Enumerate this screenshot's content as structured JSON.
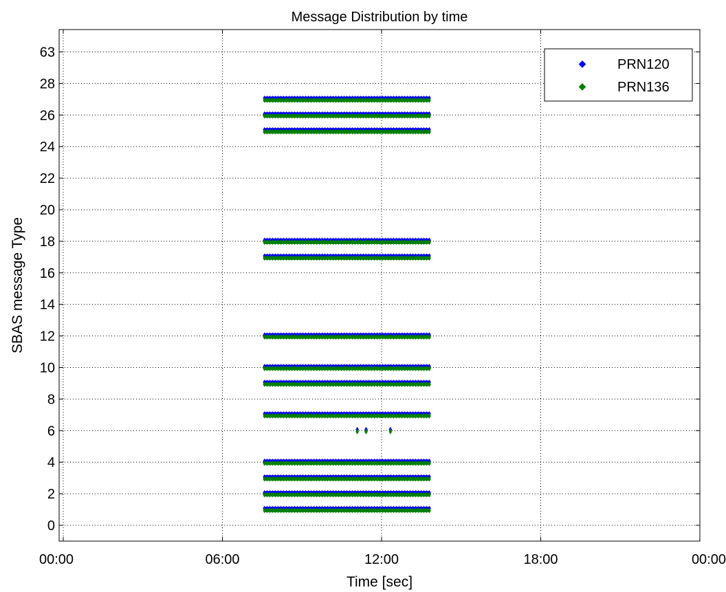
{
  "chart_data": {
    "type": "scatter",
    "title": "Message Distribution by time",
    "xlabel": "Time [sec]",
    "ylabel": "SBAS message Type",
    "x_ticks": [
      "00:00",
      "06:00",
      "12:00",
      "18:00",
      "00:00"
    ],
    "x_tick_hours": [
      0,
      6,
      12,
      18,
      24
    ],
    "xlim_hours": [
      0,
      24
    ],
    "y_ticks": [
      "0",
      "2",
      "4",
      "6",
      "8",
      "10",
      "12",
      "14",
      "16",
      "18",
      "20",
      "22",
      "24",
      "26",
      "28",
      "63"
    ],
    "grid": true,
    "legend_position": "top-right",
    "series": [
      {
        "name": "PRN120",
        "color": "#0000ff",
        "strips": [
          {
            "message_type": 1,
            "start_time": "07:35",
            "end_time": "13:50"
          },
          {
            "message_type": 2,
            "start_time": "07:35",
            "end_time": "13:50"
          },
          {
            "message_type": 3,
            "start_time": "07:35",
            "end_time": "13:50"
          },
          {
            "message_type": 4,
            "start_time": "07:35",
            "end_time": "13:50"
          },
          {
            "message_type": 7,
            "start_time": "07:35",
            "end_time": "13:50"
          },
          {
            "message_type": 9,
            "start_time": "07:35",
            "end_time": "13:50"
          },
          {
            "message_type": 10,
            "start_time": "07:35",
            "end_time": "13:50"
          },
          {
            "message_type": 12,
            "start_time": "07:35",
            "end_time": "13:50"
          },
          {
            "message_type": 17,
            "start_time": "07:35",
            "end_time": "13:50"
          },
          {
            "message_type": 18,
            "start_time": "07:35",
            "end_time": "13:50"
          },
          {
            "message_type": 25,
            "start_time": "07:35",
            "end_time": "13:50"
          },
          {
            "message_type": 26,
            "start_time": "07:35",
            "end_time": "13:50"
          },
          {
            "message_type": 27,
            "start_time": "07:35",
            "end_time": "13:50"
          }
        ],
        "points": [
          {
            "message_type": 6,
            "time": "11:05"
          },
          {
            "message_type": 6,
            "time": "11:25"
          },
          {
            "message_type": 6,
            "time": "12:20"
          }
        ]
      },
      {
        "name": "PRN136",
        "color": "#008000",
        "strips": [
          {
            "message_type": 1,
            "start_time": "07:35",
            "end_time": "13:50"
          },
          {
            "message_type": 2,
            "start_time": "07:35",
            "end_time": "13:50"
          },
          {
            "message_type": 3,
            "start_time": "07:35",
            "end_time": "13:50"
          },
          {
            "message_type": 4,
            "start_time": "07:35",
            "end_time": "13:50"
          },
          {
            "message_type": 7,
            "start_time": "07:35",
            "end_time": "13:50"
          },
          {
            "message_type": 9,
            "start_time": "07:35",
            "end_time": "13:50"
          },
          {
            "message_type": 10,
            "start_time": "07:35",
            "end_time": "13:50"
          },
          {
            "message_type": 12,
            "start_time": "07:35",
            "end_time": "13:50"
          },
          {
            "message_type": 17,
            "start_time": "07:35",
            "end_time": "13:50"
          },
          {
            "message_type": 18,
            "start_time": "07:35",
            "end_time": "13:50"
          },
          {
            "message_type": 25,
            "start_time": "07:35",
            "end_time": "13:50"
          },
          {
            "message_type": 26,
            "start_time": "07:35",
            "end_time": "13:50"
          },
          {
            "message_type": 27,
            "start_time": "07:35",
            "end_time": "13:50"
          }
        ],
        "points": [
          {
            "message_type": 6,
            "time": "11:05"
          },
          {
            "message_type": 6,
            "time": "11:25"
          },
          {
            "message_type": 6,
            "time": "12:20"
          }
        ]
      }
    ]
  }
}
